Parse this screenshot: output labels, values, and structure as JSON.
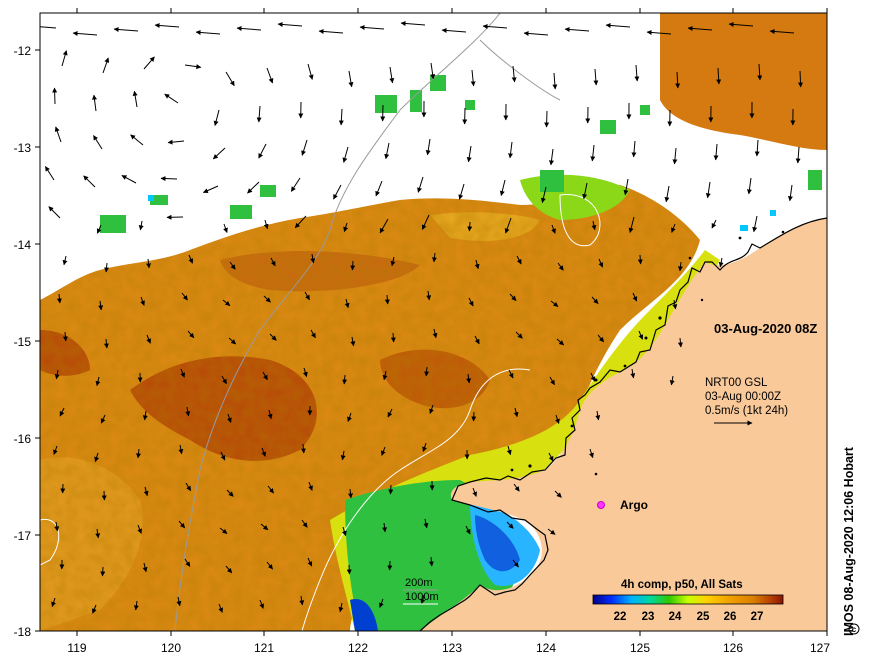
{
  "map": {
    "datetime_label": "03-Aug-2020 08Z",
    "current_label": {
      "product": "NRT00 GSL",
      "time": "03-Aug 00:00Z",
      "scale": "0.5m/s (1kt 24h)"
    },
    "argo_label": "Argo",
    "depth_contours": [
      "200m",
      "1000m"
    ],
    "colorbar": {
      "title": "4h comp, p50, All Sats",
      "ticks": [
        "22",
        "23",
        "24",
        "25",
        "26",
        "27"
      ],
      "range": [
        21.4,
        27.9
      ],
      "colors": [
        "#00008c",
        "#0030ff",
        "#00b0ff",
        "#00d8a0",
        "#30c800",
        "#c8ff00",
        "#ffd000",
        "#f0a000",
        "#dc8000",
        "#b84400",
        "#8c1400"
      ]
    },
    "x_ticks": [
      "119",
      "120",
      "121",
      "122",
      "123",
      "124",
      "125",
      "126",
      "127"
    ],
    "y_ticks": [
      "-12",
      "-13",
      "-14",
      "-15",
      "-16",
      "-17",
      "-18"
    ],
    "credit": "IMOS 08-Aug-2020 12:06 Hobart",
    "colors": {
      "land": "#f9c99a",
      "coastline": "#000000",
      "contour_200m": "#999999",
      "contour_1000m": "#ffffff",
      "argo": "#ff33ff",
      "warm_sst": "#dc8a14",
      "hot_sst": "#b84a08",
      "cool_sst": "#28b4ff"
    },
    "icons": [
      "current-arrow-icon",
      "argo-float-icon",
      "copyright-icon"
    ]
  }
}
